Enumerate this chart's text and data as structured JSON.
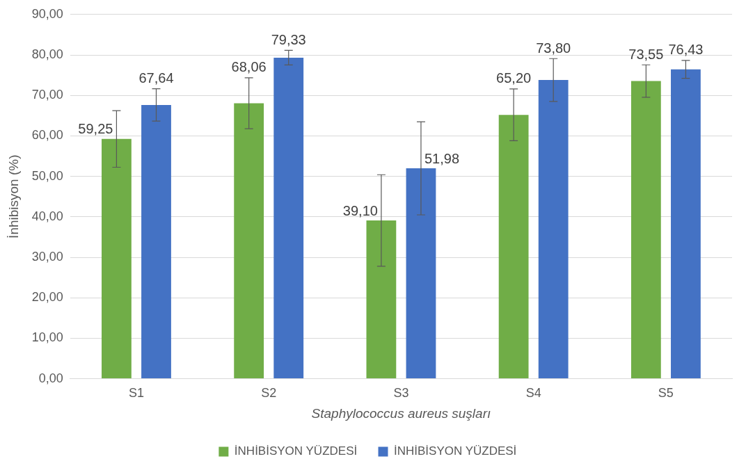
{
  "chart_data": {
    "type": "bar",
    "xlabel": "Staphylococcus aureus suşları",
    "ylabel": "İnhibisyon (%)",
    "categories": [
      "S1",
      "S2",
      "S3",
      "S4",
      "S5"
    ],
    "series": [
      {
        "name": "İNHİBİSYON YÜZDESİ",
        "color": "#70ad47",
        "values": [
          59.25,
          68.06,
          39.1,
          65.2,
          73.55
        ],
        "errors": [
          7,
          6.3,
          11.3,
          6.4,
          4
        ],
        "value_labels": [
          "59,25",
          "68,06",
          "39,10",
          "65,20",
          "73,55"
        ]
      },
      {
        "name": "İNHİBİSYON YÜZDESİ",
        "color": "#4472c4",
        "values": [
          67.64,
          79.33,
          51.98,
          73.8,
          76.43
        ],
        "errors": [
          4,
          1.8,
          11.5,
          5.3,
          2.2
        ],
        "value_labels": [
          "67,64",
          "79,33",
          "51,98",
          "73,80",
          "76,43"
        ]
      }
    ],
    "ylim": [
      0,
      90
    ],
    "yticks": [
      {
        "value": 0,
        "label": "0,00"
      },
      {
        "value": 10,
        "label": "10,00"
      },
      {
        "value": 20,
        "label": "20,00"
      },
      {
        "value": 30,
        "label": "30,00"
      },
      {
        "value": 40,
        "label": "40,00"
      },
      {
        "value": 50,
        "label": "50,00"
      },
      {
        "value": 60,
        "label": "60,00"
      },
      {
        "value": 70,
        "label": "70,00"
      },
      {
        "value": 80,
        "label": "80,00"
      },
      {
        "value": 90,
        "label": "90,00"
      }
    ],
    "grid": "y",
    "legend": "bottom"
  }
}
